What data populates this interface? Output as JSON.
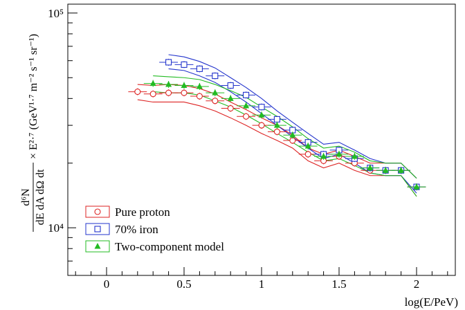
{
  "chart_data": {
    "type": "scatter",
    "title": "",
    "xlabel": "log(E/PeV)",
    "ylabel": {
      "numerator": "d⁶N",
      "denominator": "dE dA dΩ dt",
      "suffix": "× E²·⁷ (GeV¹·⁷ m⁻² s⁻¹ sr⁻¹)"
    },
    "xlim": [
      -0.25,
      2.25
    ],
    "ylim": [
      6000,
      110000
    ],
    "yscale": "log",
    "grid": false,
    "x_ticks": [
      0,
      0.5,
      1,
      1.5,
      2
    ],
    "x_tick_labels": [
      "0",
      "0.5",
      "1",
      "1.5",
      "2"
    ],
    "y_ticks": [
      10000,
      100000
    ],
    "y_tick_labels": [
      "10⁴",
      "10⁵"
    ],
    "legend_position": "bottom-left",
    "series": [
      {
        "name": "Pure proton",
        "color": "#dd2222",
        "marker": "circle-open",
        "x": [
          0.2,
          0.3,
          0.4,
          0.5,
          0.6,
          0.7,
          0.8,
          0.9,
          1.0,
          1.1,
          1.2,
          1.3,
          1.4,
          1.5,
          1.6,
          1.7,
          1.8,
          1.9,
          2.0
        ],
        "values": [
          43000,
          42000,
          42500,
          42500,
          41000,
          39000,
          36000,
          33000,
          30000,
          28000,
          25500,
          22000,
          20500,
          21500,
          20000,
          18500,
          18500,
          18500,
          15500
        ],
        "band_upper": [
          46500,
          46000,
          46500,
          46000,
          44500,
          42000,
          38500,
          35500,
          32500,
          30000,
          27000,
          23500,
          22000,
          23000,
          21500,
          20000,
          20000,
          20000,
          17000
        ],
        "band_lower": [
          39500,
          38500,
          38500,
          38500,
          37000,
          35000,
          32500,
          30000,
          27500,
          25500,
          23500,
          20500,
          19000,
          20000,
          18500,
          17500,
          17500,
          17500,
          14000
        ]
      },
      {
        "name": "70% iron",
        "color": "#2233cc",
        "marker": "square-open",
        "x": [
          0.4,
          0.5,
          0.6,
          0.7,
          0.8,
          0.9,
          1.0,
          1.1,
          1.2,
          1.3,
          1.4,
          1.5,
          1.6,
          1.7,
          1.8,
          1.9,
          2.0
        ],
        "values": [
          59000,
          57500,
          55000,
          51000,
          46000,
          41500,
          36500,
          32000,
          28500,
          25000,
          22000,
          23000,
          21000,
          19000,
          18500,
          18500,
          15500
        ],
        "band_upper": [
          64000,
          62500,
          59500,
          55500,
          50000,
          45000,
          40000,
          35000,
          31000,
          27500,
          24500,
          25000,
          23000,
          21000,
          20000,
          20000,
          17000
        ],
        "band_lower": [
          55000,
          54000,
          51000,
          47500,
          43000,
          38500,
          34000,
          30000,
          26500,
          23500,
          21000,
          22000,
          20000,
          18000,
          17500,
          17500,
          14500
        ]
      },
      {
        "name": "Two-component model",
        "color": "#22bb22",
        "marker": "triangle-filled",
        "x": [
          0.3,
          0.4,
          0.5,
          0.6,
          0.7,
          0.8,
          0.9,
          1.0,
          1.1,
          1.2,
          1.3,
          1.4,
          1.5,
          1.6,
          1.7,
          1.8,
          1.9,
          2.0
        ],
        "values": [
          47000,
          46500,
          46000,
          45500,
          42500,
          40000,
          37000,
          33500,
          30000,
          27000,
          24000,
          21500,
          22000,
          21500,
          19000,
          18500,
          18500,
          15500
        ],
        "band_upper": [
          51000,
          50500,
          50000,
          49000,
          46500,
          43500,
          40500,
          36500,
          33000,
          29500,
          26000,
          23500,
          24000,
          22500,
          20500,
          20000,
          20000,
          17000
        ],
        "band_lower": [
          43000,
          42500,
          42500,
          41500,
          39000,
          36500,
          33500,
          30500,
          27500,
          25000,
          22500,
          20500,
          21000,
          19500,
          18000,
          17500,
          17500,
          14000
        ]
      }
    ]
  }
}
